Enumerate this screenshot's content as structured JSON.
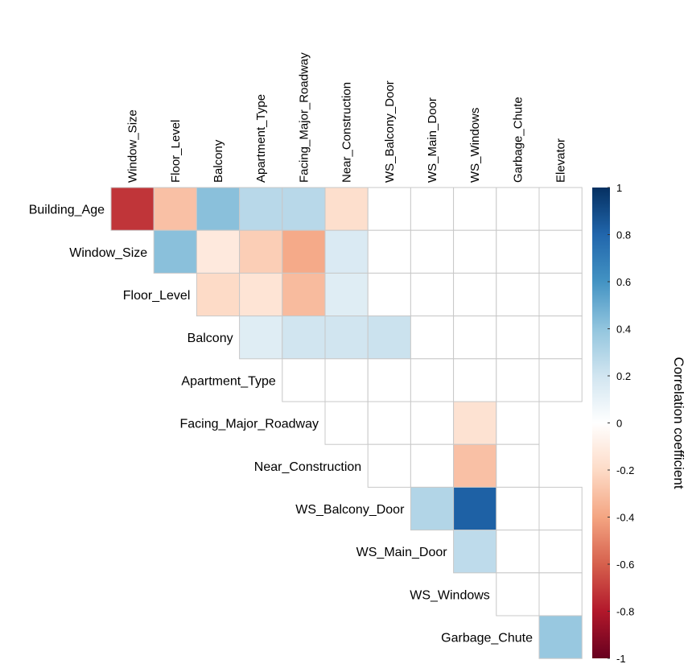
{
  "chart_data": {
    "type": "heatmap",
    "layout": "upper-triangle",
    "row_labels": [
      "Building_Age",
      "Window_Size",
      "Floor_Level",
      "Balcony",
      "Apartment_Type",
      "Facing_Major_Roadway",
      "Near_Construction",
      "WS_Balcony_Door",
      "WS_Main_Door",
      "WS_Windows",
      "Garbage_Chute"
    ],
    "col_labels": [
      "Window_Size",
      "Floor_Level",
      "Balcony",
      "Apartment_Type",
      "Facing_Major_Roadway",
      "Near_Construction",
      "WS_Balcony_Door",
      "WS_Main_Door",
      "WS_Windows",
      "Garbage_Chute",
      "Elevator"
    ],
    "values": [
      [
        -0.72,
        -0.3,
        0.42,
        0.28,
        0.28,
        -0.18,
        0,
        0,
        0,
        0,
        0
      ],
      [
        0.42,
        -0.12,
        -0.25,
        -0.38,
        0.16,
        0,
        0,
        0,
        0,
        0
      ],
      [
        -0.2,
        -0.15,
        -0.32,
        0.14,
        0,
        0,
        0,
        0,
        0
      ],
      [
        0.14,
        0.2,
        0.2,
        0.22,
        0,
        0,
        0,
        0
      ],
      [
        0,
        0,
        0,
        0,
        0,
        0,
        0
      ],
      [
        0,
        0,
        0,
        -0.16,
        0
      ],
      [
        0,
        0,
        -0.3,
        0
      ],
      [
        0.3,
        0.82,
        0,
        0
      ],
      [
        0.26,
        0,
        0
      ],
      [
        0,
        0
      ],
      [
        0.38
      ]
    ],
    "colorbar": {
      "title": "Correlation coefficient",
      "range": [
        -1,
        1
      ],
      "ticks": [
        "1",
        "0.8",
        "0.6",
        "0.4",
        "0.2",
        "0",
        "-0.2",
        "-0.4",
        "-0.6",
        "-0.8",
        "-1"
      ],
      "colors": [
        "#67001F",
        "#B2182B",
        "#D6604D",
        "#F4A582",
        "#FDDBC7",
        "#FFFFFF",
        "#D1E5F0",
        "#92C5DE",
        "#4393C3",
        "#2166AC",
        "#053061"
      ]
    }
  }
}
